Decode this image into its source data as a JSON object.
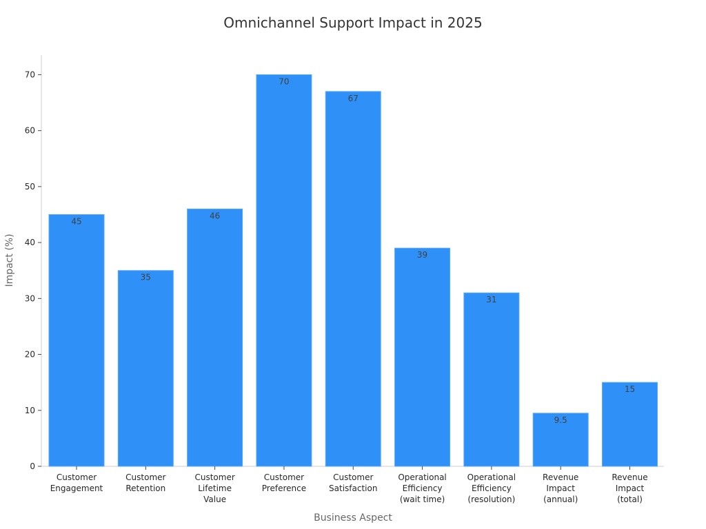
{
  "chart_data": {
    "type": "bar",
    "title": "Omnichannel Support Impact in 2025",
    "xlabel": "Business Aspect",
    "ylabel": "Impact (%)",
    "categories": [
      [
        "Customer",
        "Engagement"
      ],
      [
        "Customer",
        "Retention"
      ],
      [
        "Customer",
        "Lifetime",
        "Value"
      ],
      [
        "Customer",
        "Preference"
      ],
      [
        "Customer",
        "Satisfaction"
      ],
      [
        "Operational",
        "Efficiency",
        "(wait time)"
      ],
      [
        "Operational",
        "Efficiency",
        "(resolution)"
      ],
      [
        "Revenue",
        "Impact",
        "(annual)"
      ],
      [
        "Revenue",
        "Impact",
        "(total)"
      ]
    ],
    "values": [
      45,
      35,
      46,
      70,
      67,
      39,
      31,
      9.5,
      15
    ],
    "value_labels": [
      "45",
      "35",
      "46",
      "70",
      "67",
      "39",
      "31",
      "9.5",
      "15"
    ],
    "ylim": [
      0,
      73.5
    ],
    "yticks": [
      0,
      10,
      20,
      30,
      40,
      50,
      60,
      70
    ],
    "grid": false,
    "colors": {
      "bar": "#2f91f7",
      "bar_edge": "#5aaaf5",
      "axis": "#cccccc",
      "tick": "#444444"
    }
  }
}
